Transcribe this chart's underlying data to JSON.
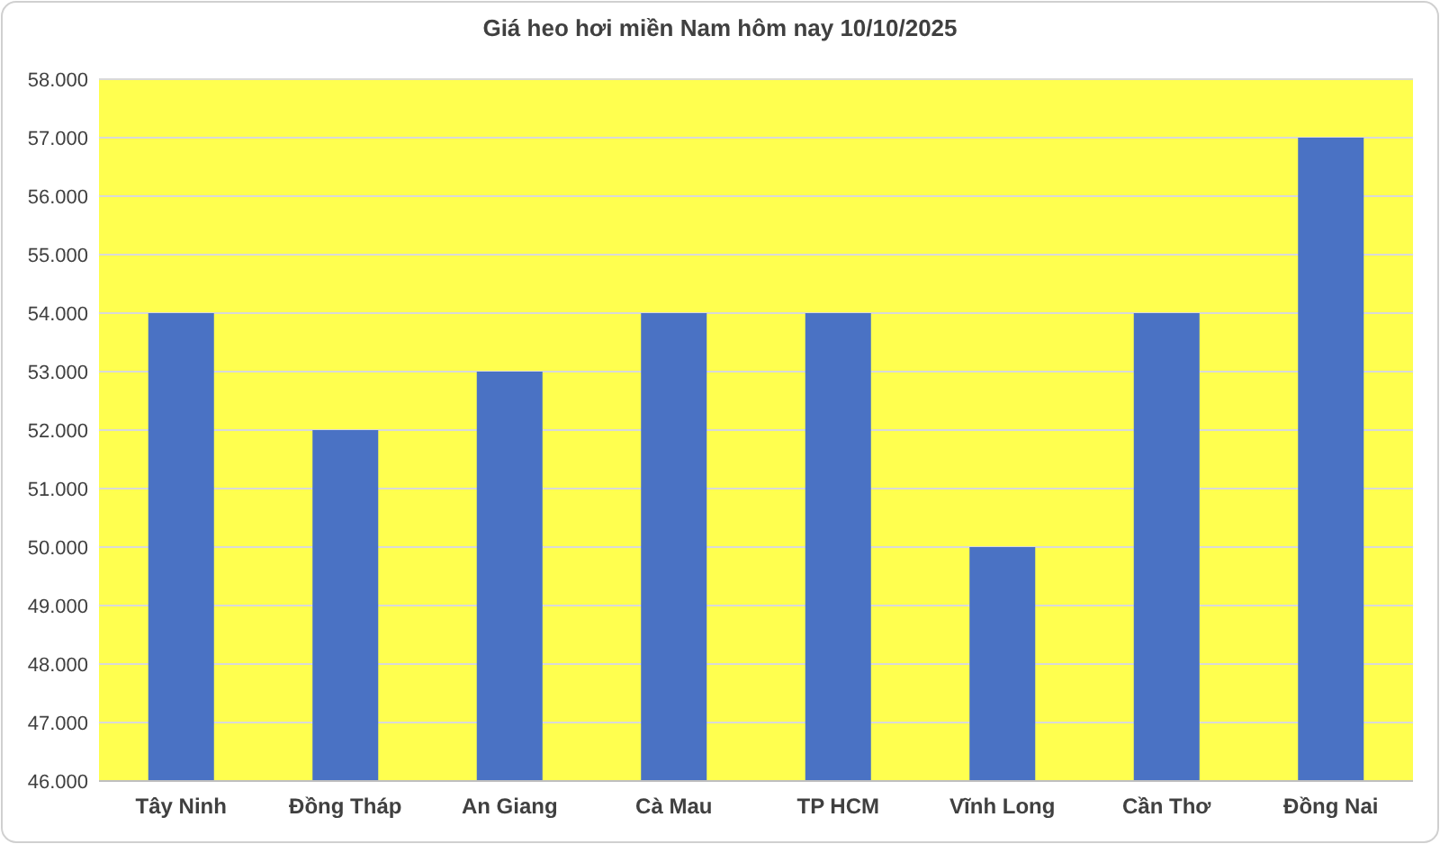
{
  "chart_data": {
    "type": "bar",
    "title": "Giá heo hơi miền Nam hôm nay 10/10/2025",
    "categories": [
      "Tây Ninh",
      "Đồng Tháp",
      "An Giang",
      "Cà Mau",
      "TP HCM",
      "Vĩnh Long",
      "Cần Thơ",
      "Đồng Nai"
    ],
    "values": [
      54000,
      52000,
      53000,
      54000,
      54000,
      50000,
      54000,
      57000
    ],
    "color": "#4a72c4",
    "ylim": [
      46000,
      58000
    ],
    "yticks": [
      {
        "value": 46000,
        "label": "46.000"
      },
      {
        "value": 47000,
        "label": "47.000"
      },
      {
        "value": 48000,
        "label": "48.000"
      },
      {
        "value": 49000,
        "label": "49.000"
      },
      {
        "value": 50000,
        "label": "50.000"
      },
      {
        "value": 51000,
        "label": "51.000"
      },
      {
        "value": 52000,
        "label": "52.000"
      },
      {
        "value": 53000,
        "label": "53.000"
      },
      {
        "value": 54000,
        "label": "54.000"
      },
      {
        "value": 55000,
        "label": "55.000"
      },
      {
        "value": 56000,
        "label": "56.000"
      },
      {
        "value": 57000,
        "label": "57.000"
      },
      {
        "value": 58000,
        "label": "58.000"
      }
    ],
    "grid": "y"
  }
}
